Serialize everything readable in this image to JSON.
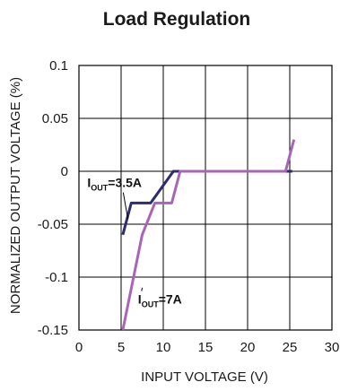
{
  "chart_data": {
    "type": "line",
    "title": "Load Regulation",
    "xlabel": "INPUT VOLTAGE (V)",
    "ylabel": "NORMALIZED OUTPUT VOLTAGE (%)",
    "xlim": [
      0,
      30
    ],
    "ylim": [
      -0.15,
      0.1
    ],
    "x_ticks": [
      0,
      5,
      10,
      15,
      20,
      25,
      30
    ],
    "y_ticks": [
      -0.15,
      -0.1,
      -0.05,
      0,
      0.05,
      0.1
    ],
    "x_tick_labels": [
      "0",
      "5",
      "10",
      "15",
      "20",
      "25",
      "30"
    ],
    "y_tick_labels": [
      "-0.15",
      "-0.1",
      "-0.05",
      "0",
      "0.05",
      "0.1"
    ],
    "grid": true,
    "series": [
      {
        "name": "IOUT=3.5A",
        "color": "#2c2c6e",
        "points": [
          [
            5.2,
            -0.06
          ],
          [
            6.2,
            -0.03
          ],
          [
            8.5,
            -0.03
          ],
          [
            11.2,
            0.0
          ],
          [
            25.3,
            0.0
          ]
        ]
      },
      {
        "name": "IOUT=7A",
        "color": "#a865b8",
        "points": [
          [
            5.2,
            -0.15
          ],
          [
            7.5,
            -0.06
          ],
          [
            9.0,
            -0.03
          ],
          [
            10.8,
            -0.03
          ],
          [
            11.0,
            -0.03
          ],
          [
            12.0,
            0.0
          ],
          [
            24.5,
            0.0
          ],
          [
            25.5,
            0.03
          ]
        ]
      }
    ],
    "annotations": [
      {
        "series": 0,
        "main": "I",
        "sub": "OUT",
        "rest": "=3.5A",
        "at": [
          1.0,
          -0.015
        ],
        "pointer_to": [
          5.8,
          -0.045
        ]
      },
      {
        "series": 1,
        "main": "I",
        "sub": "OUT",
        "rest": "=7A",
        "at": [
          7.0,
          -0.125
        ],
        "pointer_to": [
          7.5,
          -0.11
        ]
      }
    ]
  }
}
